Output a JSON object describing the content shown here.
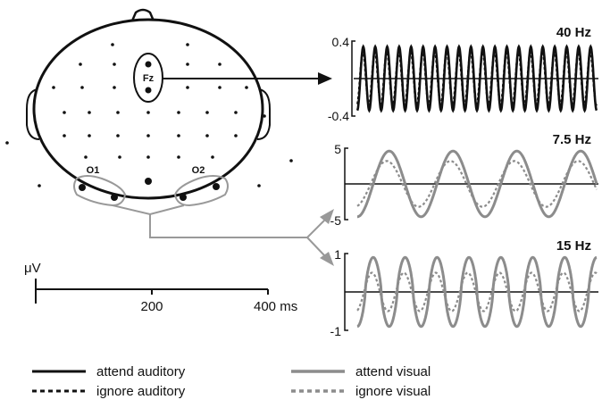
{
  "head": {
    "electrodes": {
      "fz": "Fz",
      "o1": "O1",
      "o2": "O2"
    }
  },
  "scale_bar": {
    "unit_label": "μV",
    "tick_200": "200",
    "tick_400": "400 ms"
  },
  "panels": [
    {
      "title": "40 Hz",
      "ymax_label": "0.4",
      "ymin_label": "-0.4",
      "frequency_hz": 40,
      "y_range": [
        -0.4,
        0.4
      ],
      "attend_amplitude": 0.34,
      "ignore_amplitude": 0.28,
      "color": "#111111"
    },
    {
      "title": "7.5 Hz",
      "ymax_label": "5",
      "ymin_label": "-5",
      "frequency_hz": 7.5,
      "y_range": [
        -5,
        5
      ],
      "attend_amplitude": 4.6,
      "ignore_amplitude": 3.2,
      "color": "#8c8c8c"
    },
    {
      "title": "15 Hz",
      "ymax_label": "1",
      "ymin_label": "-1",
      "frequency_hz": 15,
      "y_range": [
        -1,
        1
      ],
      "attend_amplitude": 0.9,
      "ignore_amplitude": 0.5,
      "color": "#8c8c8c"
    }
  ],
  "legend": {
    "attend_auditory": "attend auditory",
    "ignore_auditory": "ignore auditory",
    "attend_visual": "attend visual",
    "ignore_visual": "ignore visual",
    "auditory_color": "#111111",
    "visual_color": "#8c8c8c"
  }
}
